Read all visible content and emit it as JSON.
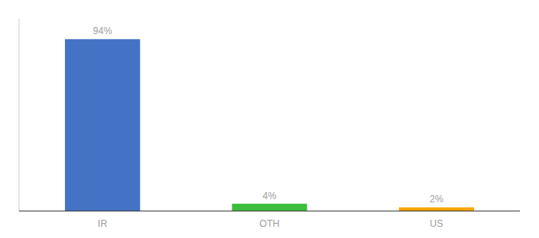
{
  "chart_data": {
    "type": "bar",
    "categories": [
      "IR",
      "OTH",
      "US"
    ],
    "values": [
      94,
      4,
      2
    ],
    "value_labels": [
      "94%",
      "4%",
      "2%"
    ],
    "colors": [
      "#4472C4",
      "#3DBD3D",
      "#FFA500"
    ],
    "ylim": [
      0,
      105
    ],
    "data_labels": true,
    "tick_labels": "x",
    "grid": false
  }
}
